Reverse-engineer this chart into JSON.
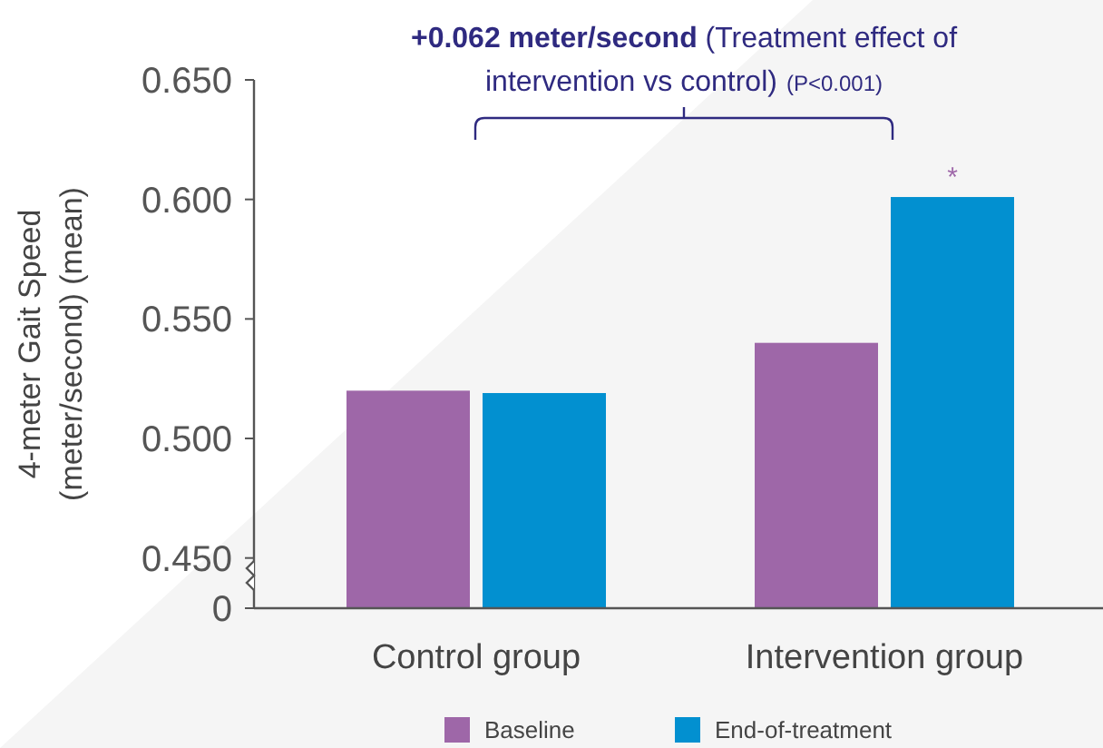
{
  "chart_data": {
    "type": "bar",
    "ylabel": "4-meter Gait Speed (meter/second) (mean)",
    "categories": [
      "Control group",
      "Intervention group"
    ],
    "series": [
      {
        "name": "Baseline",
        "color": "#9e67a8",
        "values": [
          0.52,
          0.54
        ]
      },
      {
        "name": "End-of-treatment",
        "color": "#0290d0",
        "values": [
          0.519,
          0.601
        ]
      }
    ],
    "ylim": [
      0.429,
      0.65
    ],
    "yticks": [
      {
        "value": 0.429,
        "label": "0"
      },
      {
        "value": 0.45,
        "label": "0.450"
      },
      {
        "value": 0.5,
        "label": "0.500"
      },
      {
        "value": 0.55,
        "label": "0.550"
      },
      {
        "value": 0.6,
        "label": "0.600"
      },
      {
        "value": 0.65,
        "label": "0.650"
      }
    ],
    "annotations": [
      "+0.062 meter/second",
      "(Treatment effect of intervention vs control)",
      "(P<0.001)",
      {
        "text": "*",
        "x": "Intervention group",
        "y": 0.601
      }
    ],
    "legend": "bottom",
    "grid": false
  }
}
